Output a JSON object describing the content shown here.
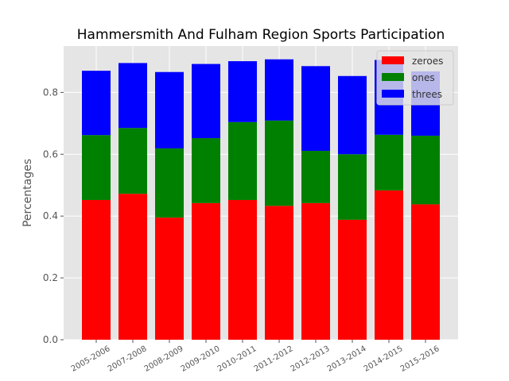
{
  "chart_data": {
    "type": "bar",
    "stacked": true,
    "title": "Hammersmith And Fulham Region Sports Participation",
    "xlabel": "",
    "ylabel": "Percentages",
    "ylim": [
      0,
      0.95
    ],
    "yticks": [
      "0.0",
      "0.2",
      "0.4",
      "0.6",
      "0.8"
    ],
    "grid": true,
    "legend_position": "top-right",
    "categories": [
      "2005-2006",
      "2007-2008",
      "2008-2009",
      "2009-2010",
      "2010-2011",
      "2011-2012",
      "2012-2013",
      "2013-2014",
      "2014-2015",
      "2015-2016"
    ],
    "series": [
      {
        "name": "zeroes",
        "color": "#ff0000",
        "values": [
          0.452,
          0.472,
          0.395,
          0.442,
          0.452,
          0.433,
          0.442,
          0.388,
          0.483,
          0.438
        ]
      },
      {
        "name": "ones",
        "color": "#008000",
        "values": [
          0.21,
          0.213,
          0.224,
          0.21,
          0.252,
          0.276,
          0.169,
          0.212,
          0.18,
          0.222
        ]
      },
      {
        "name": "threes",
        "color": "#0000ff",
        "values": [
          0.208,
          0.21,
          0.247,
          0.24,
          0.197,
          0.198,
          0.274,
          0.253,
          0.242,
          0.208
        ]
      }
    ]
  }
}
